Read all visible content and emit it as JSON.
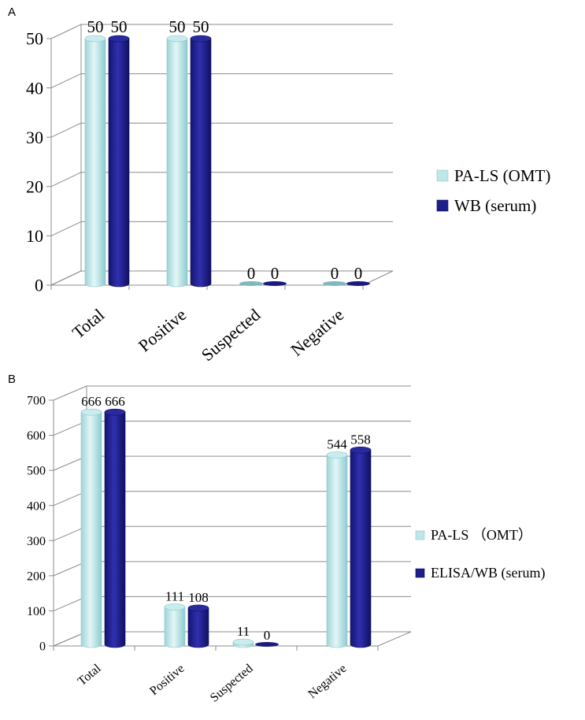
{
  "chart_data": [
    {
      "panel_label": "A",
      "type": "bar",
      "style": "3d-cylinder",
      "categories": [
        "Total",
        "Positive",
        "Suspected",
        "Negative"
      ],
      "series": [
        {
          "name": "PA-LS (OMT)",
          "values": [
            50,
            50,
            0,
            0
          ],
          "color": "#bfe6e8"
        },
        {
          "name": "WB (serum)",
          "values": [
            50,
            50,
            0,
            0
          ],
          "color": "#1d1d8c"
        }
      ],
      "data_labels": [
        [
          "50",
          "50",
          "0",
          "0"
        ],
        [
          "50",
          "50",
          "0",
          "0"
        ]
      ],
      "yticks": [
        "0",
        "10",
        "20",
        "30",
        "40",
        "50"
      ],
      "ylim": [
        0,
        50
      ],
      "grid": true,
      "legend": "right"
    },
    {
      "panel_label": "B",
      "type": "bar",
      "style": "3d-cylinder",
      "categories": [
        "Total",
        "Positive",
        "Suspected",
        "Negative"
      ],
      "series": [
        {
          "name": "PA-LS （OMT）",
          "values": [
            666,
            111,
            11,
            544
          ],
          "color": "#bfe6e8"
        },
        {
          "name": "ELISA/WB (serum)",
          "values": [
            666,
            108,
            0,
            558
          ],
          "color": "#1d1d8c"
        }
      ],
      "data_labels": [
        [
          "666",
          "111",
          "11",
          "544"
        ],
        [
          "666",
          "108",
          "0",
          "558"
        ]
      ],
      "yticks": [
        "0",
        "100",
        "200",
        "300",
        "400",
        "500",
        "600",
        "700"
      ],
      "ylim": [
        0,
        700
      ],
      "grid": true,
      "legend": "right"
    }
  ]
}
